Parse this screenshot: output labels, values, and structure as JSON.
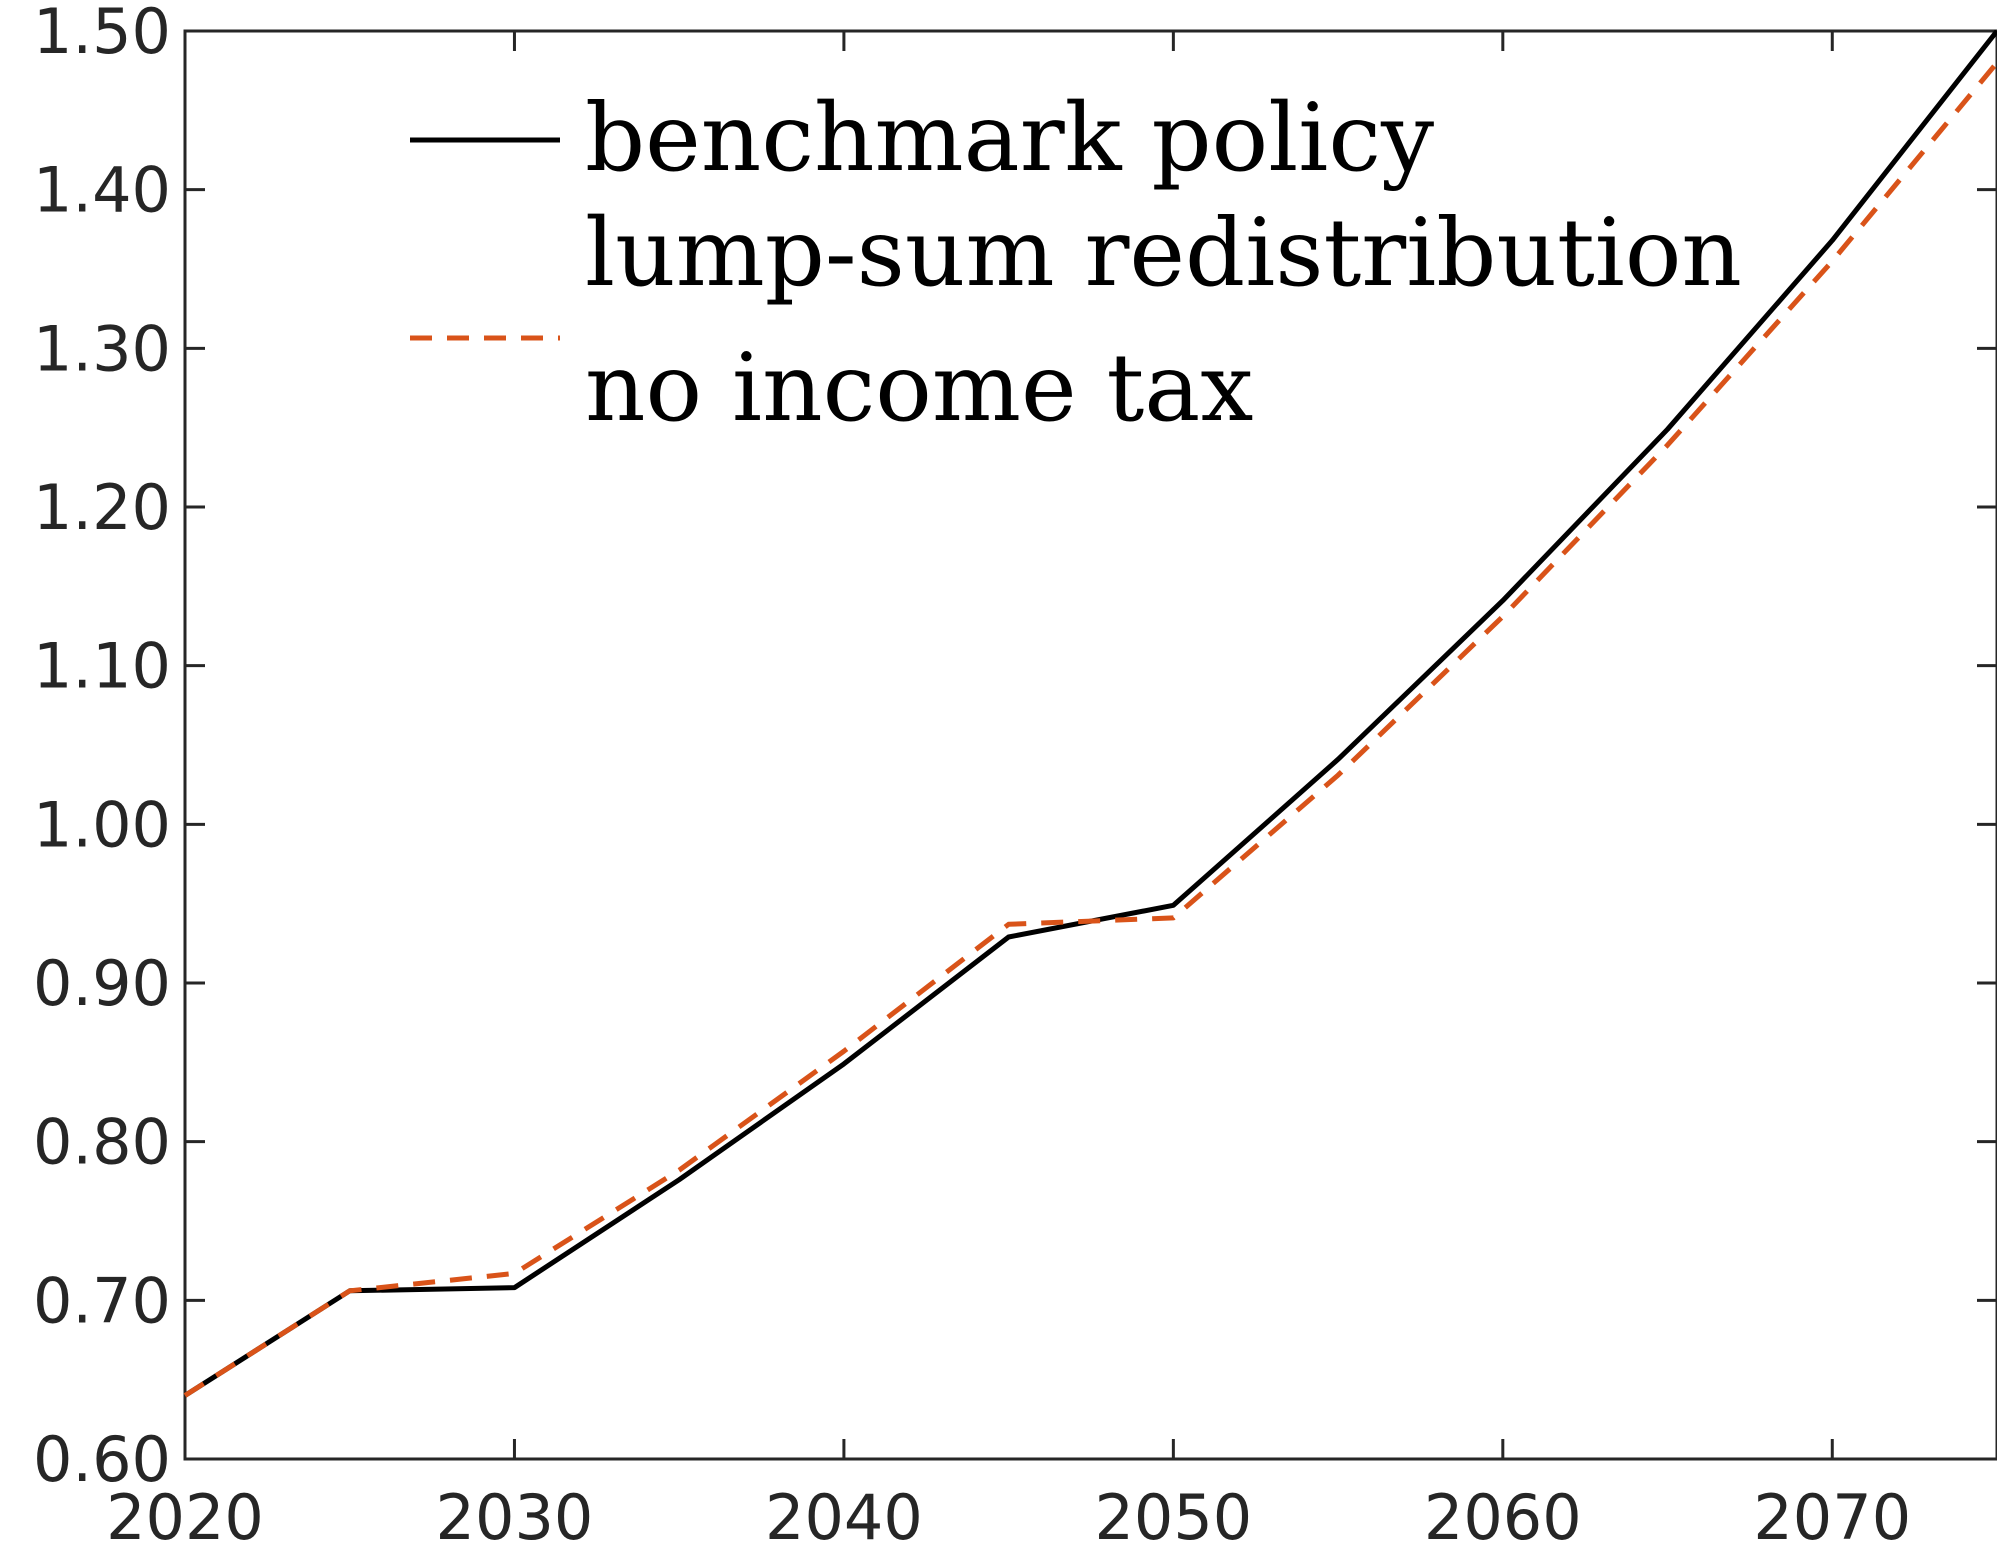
{
  "chart_data": {
    "type": "line",
    "title": "",
    "xlabel": "",
    "ylabel": "",
    "xlim": [
      2020,
      2075
    ],
    "ylim": [
      0.6,
      1.5
    ],
    "xticks": [
      "2020",
      "2030",
      "2040",
      "2050",
      "2060",
      "2070"
    ],
    "yticks": [
      "0.60",
      "0.70",
      "0.80",
      "0.90",
      "1.00",
      "1.10",
      "1.20",
      "1.30",
      "1.40",
      "1.50"
    ],
    "grid": false,
    "legend_position": "top",
    "legend": [
      "benchmark policy",
      "lump-sum redistribution",
      "no income tax"
    ],
    "x": [
      2020,
      2025,
      2030,
      2035,
      2040,
      2045,
      2050,
      2055,
      2060,
      2065,
      2070,
      2075
    ],
    "series": [
      {
        "name": "benchmark policy",
        "color": "#000000",
        "style": "solid",
        "values": [
          0.64,
          0.706,
          0.708,
          0.776,
          0.849,
          0.929,
          0.949,
          1.041,
          1.141,
          1.249,
          1.368,
          1.5
        ]
      },
      {
        "name": "lump-sum redistribution",
        "color": "#000000",
        "style": "none",
        "values": [
          0.64,
          0.706,
          0.708,
          0.776,
          0.849,
          0.929,
          0.949,
          1.041,
          1.141,
          1.249,
          1.368,
          1.5
        ]
      },
      {
        "name": "no income tax",
        "color": "#D95319",
        "style": "dashed",
        "values": [
          0.64,
          0.706,
          0.717,
          0.782,
          0.857,
          0.937,
          0.941,
          1.031,
          1.131,
          1.239,
          1.355,
          1.48
        ]
      }
    ]
  }
}
